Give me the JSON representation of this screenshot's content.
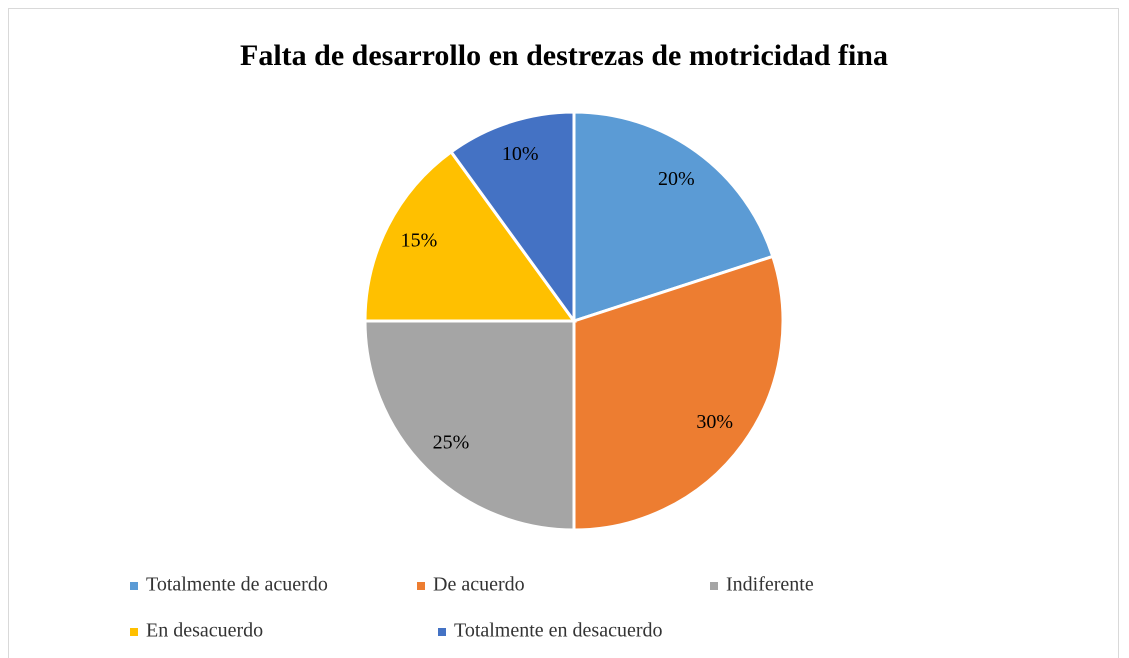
{
  "chart_data": {
    "type": "pie",
    "title": "Falta de desarrollo en destrezas de motricidad fina",
    "categories": [
      "Totalmente de acuerdo",
      "De acuerdo",
      "Indiferente",
      "En desacuerdo",
      "Totalmente en desacuerdo"
    ],
    "values": [
      20,
      30,
      25,
      15,
      10
    ],
    "value_labels": [
      "20%",
      "30%",
      "25%",
      "15%",
      "10%"
    ],
    "colors": [
      "#5b9bd5",
      "#ed7d31",
      "#a5a5a5",
      "#ffc000",
      "#4472c4"
    ],
    "legend": "bottom"
  }
}
